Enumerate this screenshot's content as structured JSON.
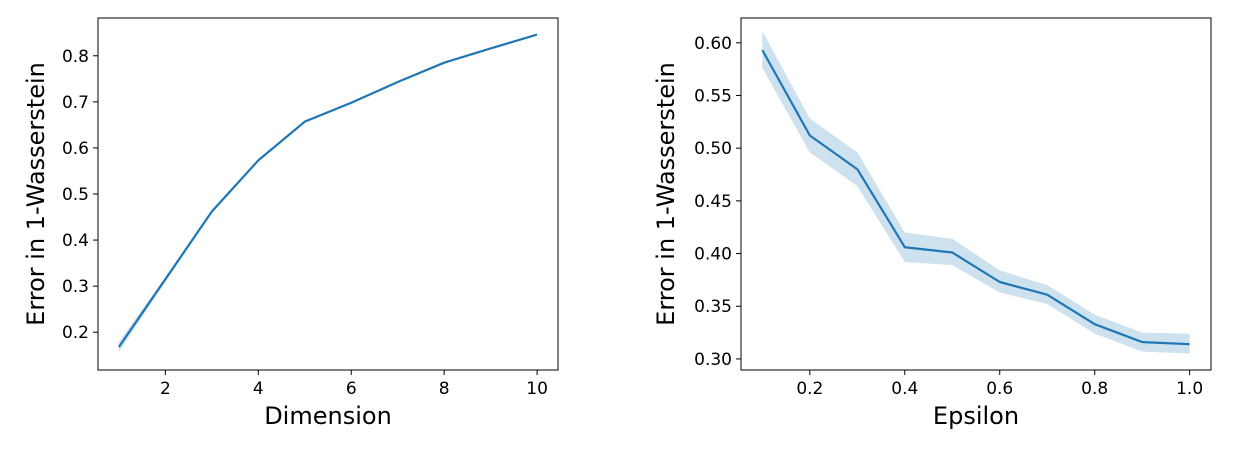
{
  "chart_data": [
    {
      "type": "line",
      "xlabel": "Dimension",
      "ylabel": "Error in 1-Wasserstein",
      "xlim": [
        0.55,
        10.45
      ],
      "ylim": [
        0.118,
        0.882
      ],
      "xticks": [
        2,
        4,
        6,
        8,
        10
      ],
      "yticks": [
        0.2,
        0.3,
        0.4,
        0.5,
        0.6,
        0.7,
        0.8
      ],
      "grid": false,
      "color": "#1f77b4",
      "series": [
        {
          "x": [
            1,
            2,
            3,
            4,
            5,
            6,
            7,
            8,
            9,
            10
          ],
          "y": [
            0.168,
            0.315,
            0.462,
            0.573,
            0.657,
            0.698,
            0.743,
            0.785,
            0.816,
            0.846
          ],
          "lower": [
            0.157,
            0.31,
            0.458,
            0.57,
            0.654,
            0.696,
            0.741,
            0.783,
            0.814,
            0.844
          ],
          "upper": [
            0.179,
            0.32,
            0.466,
            0.576,
            0.66,
            0.7,
            0.745,
            0.787,
            0.818,
            0.848
          ]
        }
      ]
    },
    {
      "type": "line",
      "xlabel": "Epsilon",
      "ylabel": "Error in 1-Wasserstein",
      "xlim": [
        0.055,
        1.045
      ],
      "ylim": [
        0.2895,
        0.6235
      ],
      "xticks": [
        0.2,
        0.4,
        0.6,
        0.8,
        1.0
      ],
      "yticks": [
        0.3,
        0.35,
        0.4,
        0.45,
        0.5,
        0.55,
        0.6
      ],
      "grid": false,
      "color": "#1f77b4",
      "series": [
        {
          "x": [
            0.1,
            0.2,
            0.3,
            0.4,
            0.5,
            0.6,
            0.7,
            0.8,
            0.9,
            1.0
          ],
          "y": [
            0.593,
            0.512,
            0.48,
            0.406,
            0.401,
            0.373,
            0.361,
            0.333,
            0.316,
            0.314
          ],
          "lower": [
            0.576,
            0.496,
            0.464,
            0.392,
            0.389,
            0.363,
            0.352,
            0.324,
            0.307,
            0.305
          ],
          "upper": [
            0.611,
            0.528,
            0.496,
            0.42,
            0.414,
            0.384,
            0.37,
            0.342,
            0.325,
            0.324
          ]
        }
      ]
    }
  ]
}
